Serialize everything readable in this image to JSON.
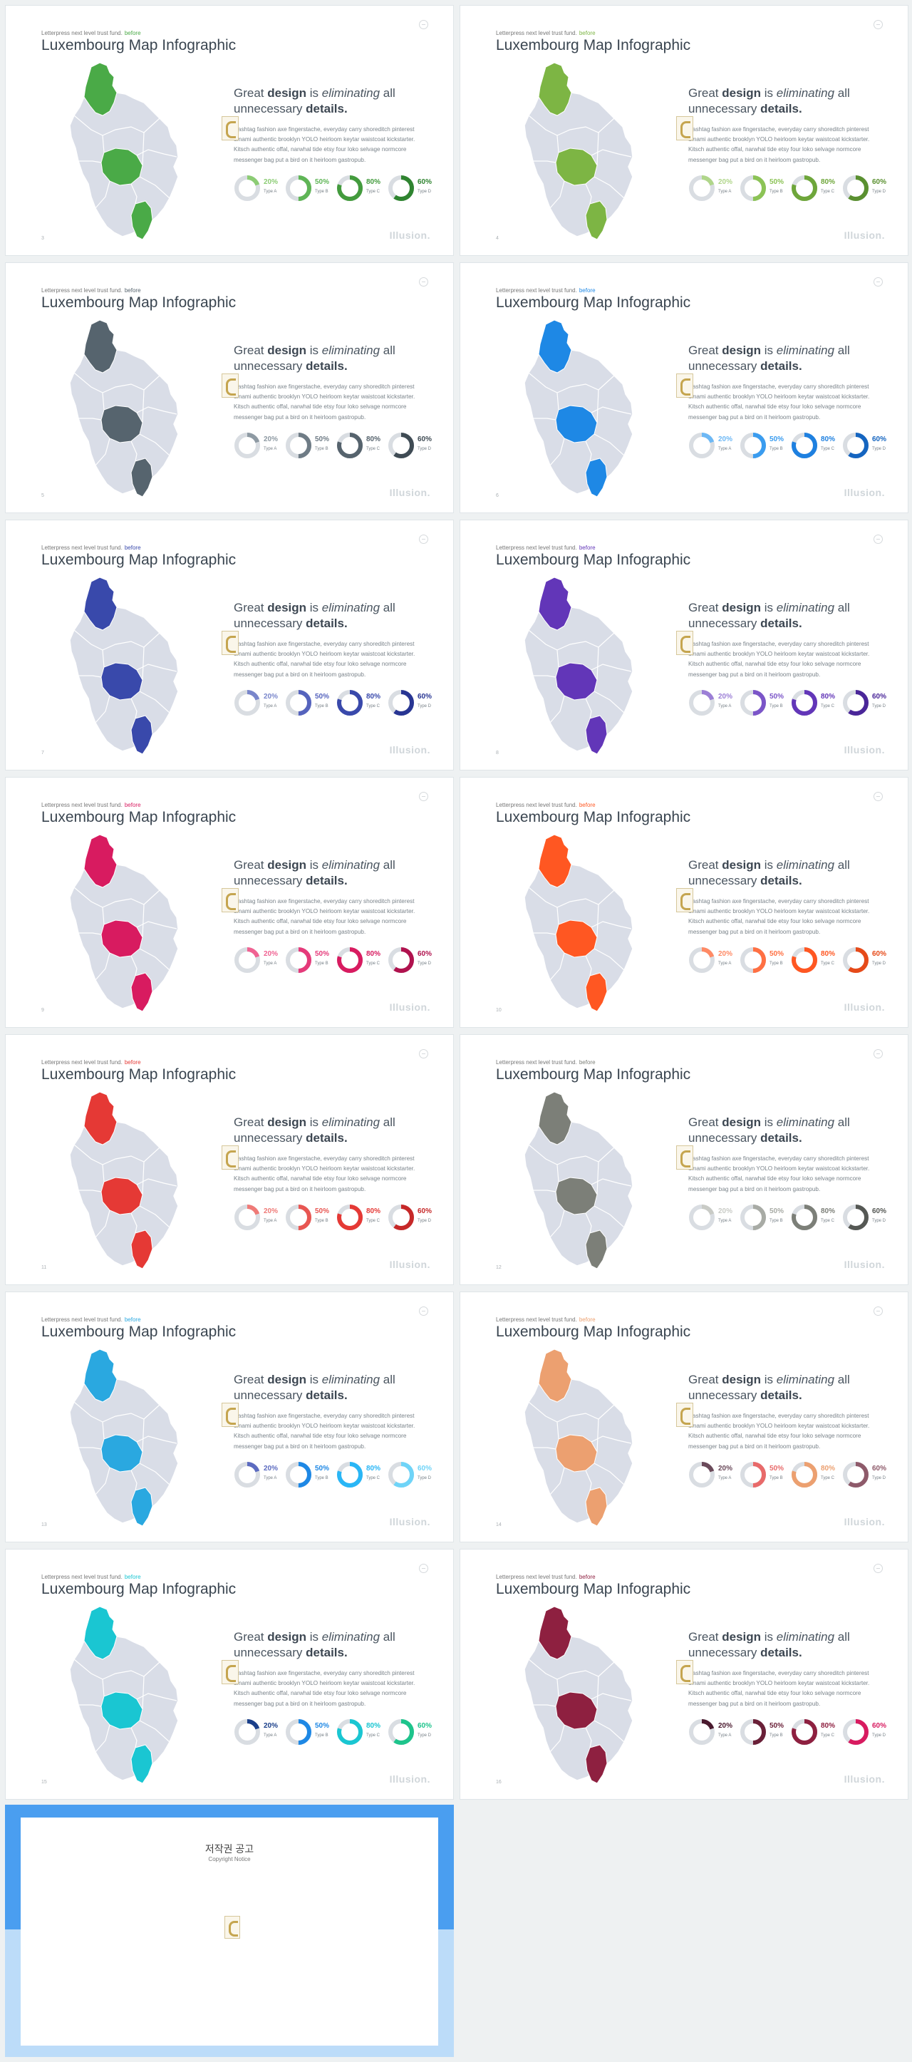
{
  "slide_text": {
    "kicker": "Letterpress next level trust fund.",
    "kicker_highlight": "before",
    "title": "Luxembourg Map Infographic",
    "heading_1": "Great ",
    "heading_bold_1": "design",
    "heading_2": " is ",
    "heading_italic": "eliminating",
    "heading_3": " all unnecessary ",
    "heading_bold_2": "details.",
    "body": "Hashtag fashion axe fingerstache, everyday carry shoreditch pinterest umami authentic brooklyn YOLO heirloom keytar waistcoat kickstarter. Kitsch authentic offal, narwhal tide etsy four loko selvage normcore messenger bag put a bird on it heirloom gastropub.",
    "brand": "Illusion."
  },
  "donut_labels": [
    "20%",
    "50%",
    "80%",
    "60%"
  ],
  "donut_values": [
    20,
    50,
    80,
    60
  ],
  "donut_types": [
    "Type A",
    "Type B",
    "Type C",
    "Type D"
  ],
  "slides": [
    {
      "page": "3",
      "accent": "#4aaa47",
      "donut_colors": [
        "#8ccc74",
        "#5fb556",
        "#439b3d",
        "#2f8430"
      ]
    },
    {
      "page": "4",
      "accent": "#7db544",
      "donut_colors": [
        "#b0d68a",
        "#8cc356",
        "#6ea63a",
        "#5a9030"
      ]
    },
    {
      "page": "5",
      "accent": "#56646e",
      "donut_colors": [
        "#8e9aa3",
        "#6f7c86",
        "#56636d",
        "#3f4b54"
      ]
    },
    {
      "page": "6",
      "accent": "#1e88e5",
      "donut_colors": [
        "#6db8f5",
        "#3a9cef",
        "#1e80e0",
        "#1565c0"
      ]
    },
    {
      "page": "7",
      "accent": "#3949ab",
      "donut_colors": [
        "#7986cb",
        "#5563bd",
        "#3949ab",
        "#283593"
      ]
    },
    {
      "page": "8",
      "accent": "#6236b8",
      "donut_colors": [
        "#9c7fd6",
        "#7b55c8",
        "#6236b8",
        "#4a2699"
      ]
    },
    {
      "page": "9",
      "accent": "#d81b60",
      "donut_colors": [
        "#f06292",
        "#e53a7a",
        "#d81b60",
        "#b0124e"
      ]
    },
    {
      "page": "10",
      "accent": "#ff5722",
      "donut_colors": [
        "#ff8a65",
        "#ff7043",
        "#ff5722",
        "#e64a19"
      ]
    },
    {
      "page": "11",
      "accent": "#e53935",
      "donut_colors": [
        "#ef7a77",
        "#e85652",
        "#e53935",
        "#c62828"
      ]
    },
    {
      "page": "12",
      "accent": "#7c7f78",
      "donut_colors": [
        "#c9cbc6",
        "#a8aba5",
        "#7c7f78",
        "#555854"
      ]
    },
    {
      "page": "13",
      "accent": "#2aa8e0",
      "donut_colors": [
        "#5c6bc0",
        "#1e88e5",
        "#29b6f6",
        "#6fd4f8"
      ]
    },
    {
      "page": "14",
      "accent": "#eca070",
      "donut_colors": [
        "#6a4a5a",
        "#e86a6a",
        "#eca070",
        "#8e5a6a"
      ]
    },
    {
      "page": "15",
      "accent": "#1ac6d2",
      "donut_colors": [
        "#1a3f8a",
        "#1e88e5",
        "#1ac6d2",
        "#1ec48c"
      ]
    },
    {
      "page": "16",
      "accent": "#8e2040",
      "donut_colors": [
        "#4a1a2e",
        "#6a2038",
        "#8e2040",
        "#d81b60"
      ]
    }
  ],
  "notice": {
    "title": "저작권 공고",
    "subtitle": "Copyright Notice"
  }
}
